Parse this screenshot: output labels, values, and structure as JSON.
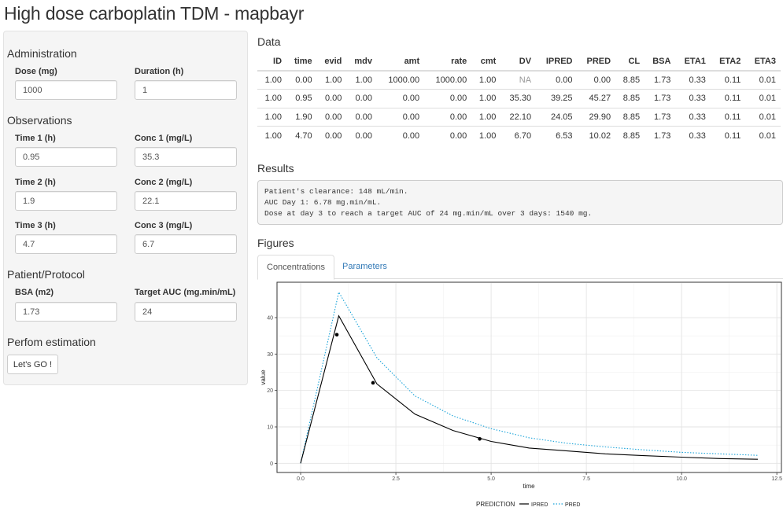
{
  "app": {
    "title": "High dose carboplatin TDM - mapbayr"
  },
  "sidebar": {
    "administration": {
      "heading": "Administration",
      "dose": {
        "label": "Dose (mg)",
        "value": "1000"
      },
      "duration": {
        "label": "Duration (h)",
        "value": "1"
      }
    },
    "observations": {
      "heading": "Observations",
      "time1": {
        "label": "Time 1 (h)",
        "value": "0.95"
      },
      "conc1": {
        "label": "Conc 1 (mg/L)",
        "value": "35.3"
      },
      "time2": {
        "label": "Time 2 (h)",
        "value": "1.9"
      },
      "conc2": {
        "label": "Conc 2 (mg/L)",
        "value": "22.1"
      },
      "time3": {
        "label": "Time 3 (h)",
        "value": "4.7"
      },
      "conc3": {
        "label": "Conc 3 (mg/L)",
        "value": "6.7"
      }
    },
    "patient": {
      "heading": "Patient/Protocol",
      "bsa": {
        "label": "BSA (m2)",
        "value": "1.73"
      },
      "target_auc": {
        "label": "Target AUC (mg.min/mL)",
        "value": "24"
      }
    },
    "estimation": {
      "heading": "Perfom estimation",
      "button_label": "Let's GO !"
    }
  },
  "data_section": {
    "heading": "Data",
    "columns": [
      "ID",
      "time",
      "evid",
      "mdv",
      "amt",
      "rate",
      "cmt",
      "DV",
      "IPRED",
      "PRED",
      "CL",
      "BSA",
      "ETA1",
      "ETA2",
      "ETA3"
    ],
    "rows": [
      [
        "1.00",
        "0.00",
        "1.00",
        "1.00",
        "1000.00",
        "1000.00",
        "1.00",
        "NA",
        "0.00",
        "0.00",
        "8.85",
        "1.73",
        "0.33",
        "0.11",
        "0.01"
      ],
      [
        "1.00",
        "0.95",
        "0.00",
        "0.00",
        "0.00",
        "0.00",
        "1.00",
        "35.30",
        "39.25",
        "45.27",
        "8.85",
        "1.73",
        "0.33",
        "0.11",
        "0.01"
      ],
      [
        "1.00",
        "1.90",
        "0.00",
        "0.00",
        "0.00",
        "0.00",
        "1.00",
        "22.10",
        "24.05",
        "29.90",
        "8.85",
        "1.73",
        "0.33",
        "0.11",
        "0.01"
      ],
      [
        "1.00",
        "4.70",
        "0.00",
        "0.00",
        "0.00",
        "0.00",
        "1.00",
        "6.70",
        "6.53",
        "10.02",
        "8.85",
        "1.73",
        "0.33",
        "0.11",
        "0.01"
      ]
    ]
  },
  "results": {
    "heading": "Results",
    "lines": [
      "Patient's clearance: 148 mL/min.",
      "AUC Day 1: 6.78 mg.min/mL.",
      "Dose at day 3 to reach a target AUC of 24 mg.min/mL over 3 days: 1540 mg."
    ]
  },
  "figures": {
    "heading": "Figures",
    "tabs": [
      {
        "label": "Concentrations"
      },
      {
        "label": "Parameters"
      }
    ],
    "active_tab": "Concentrations"
  },
  "chart_data": {
    "type": "line",
    "xlabel": "time",
    "ylabel": "value",
    "xlim": [
      -0.6,
      12.6
    ],
    "ylim": [
      -2.3,
      49.5
    ],
    "x_ticks": [
      0,
      2.5,
      5,
      7.5,
      10,
      12.5
    ],
    "x_tick_labels": [
      "0.0",
      "2.5",
      "5.0",
      "7.5",
      "10.0",
      "12.5"
    ],
    "y_ticks": [
      0,
      10,
      20,
      30,
      40
    ],
    "y_tick_labels": [
      "0",
      "10",
      "20",
      "30",
      "40"
    ],
    "grid": true,
    "legend": {
      "title": "PREDICTION",
      "position": "bottom",
      "entries": [
        {
          "name": "IPRED",
          "color": "#000000",
          "dash": "solid"
        },
        {
          "name": "PRED",
          "color": "#1aa3d9",
          "dash": "dotted"
        }
      ]
    },
    "series": [
      {
        "name": "IPRED",
        "color": "#000000",
        "x": [
          0,
          1,
          2,
          3,
          4,
          5,
          6,
          7,
          8,
          9,
          10,
          11,
          12
        ],
        "y": [
          0,
          40.5,
          21.8,
          13.5,
          9.0,
          6.0,
          4.2,
          3.4,
          2.6,
          2.1,
          1.7,
          1.3,
          1.1
        ]
      },
      {
        "name": "PRED",
        "color": "#1aa3d9",
        "x": [
          0,
          1,
          2,
          3,
          4,
          5,
          6,
          7,
          8,
          9,
          10,
          11,
          12
        ],
        "y": [
          0,
          47.0,
          29.0,
          18.5,
          13.0,
          9.5,
          7.0,
          5.5,
          4.5,
          3.7,
          3.0,
          2.6,
          2.2
        ]
      }
    ],
    "observations": {
      "x": [
        0.95,
        1.9,
        4.7
      ],
      "y": [
        35.3,
        22.1,
        6.7
      ]
    }
  }
}
